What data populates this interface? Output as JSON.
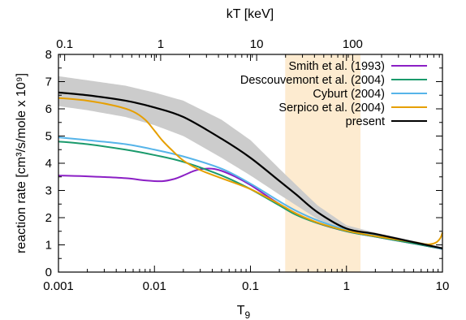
{
  "chart_data": {
    "type": "line",
    "xlabel": "T",
    "xlabel_sub": "9",
    "ylabel": "reaction rate [cm³/s/mole x 10⁹]",
    "x2label": "kT [keV]",
    "xscale": "log",
    "xlim": [
      0.001,
      10
    ],
    "ylim": [
      0,
      8
    ],
    "x_ticks": [
      {
        "value": 0.001,
        "label": "0.001"
      },
      {
        "value": 0.01,
        "label": "0.01"
      },
      {
        "value": 0.1,
        "label": "0.1"
      },
      {
        "value": 1,
        "label": "1"
      },
      {
        "value": 10,
        "label": "10"
      }
    ],
    "y_ticks": [
      {
        "value": 0,
        "label": "0"
      },
      {
        "value": 1,
        "label": "1"
      },
      {
        "value": 2,
        "label": "2"
      },
      {
        "value": 3,
        "label": "3"
      },
      {
        "value": 4,
        "label": "4"
      },
      {
        "value": 5,
        "label": "5"
      },
      {
        "value": 6,
        "label": "6"
      },
      {
        "value": 7,
        "label": "7"
      },
      {
        "value": 8,
        "label": "8"
      }
    ],
    "x2_ticks": [
      {
        "value": 0.1,
        "label": "0.1"
      },
      {
        "value": 1,
        "label": "1"
      },
      {
        "value": 10,
        "label": "10"
      },
      {
        "value": 100,
        "label": "100"
      }
    ],
    "x2_conversion_keV_per_T9": 86.17,
    "highlight_band": {
      "x": [
        0.23,
        1.4
      ],
      "color": "#fdebd0"
    },
    "uncertainty_band": {
      "x": [
        0.001,
        0.002,
        0.005,
        0.01,
        0.02,
        0.05,
        0.1,
        0.2,
        0.3,
        0.5,
        1,
        2,
        5,
        10
      ],
      "lower": [
        6.1,
        5.95,
        5.7,
        5.4,
        5.0,
        4.2,
        3.55,
        2.85,
        2.45,
        1.95,
        1.5,
        1.3,
        1.05,
        0.82
      ],
      "upper": [
        7.2,
        7.05,
        6.85,
        6.6,
        6.3,
        5.6,
        4.85,
        3.8,
        3.2,
        2.45,
        1.72,
        1.45,
        1.15,
        0.92
      ],
      "color": "#cccccc"
    },
    "series": [
      {
        "name": "Smith et al. (1993)",
        "color": "#8b1fc5",
        "x": [
          0.001,
          0.002,
          0.005,
          0.008,
          0.012,
          0.016,
          0.02,
          0.025,
          0.03,
          0.04,
          0.05,
          0.07,
          0.1,
          0.2,
          0.3,
          0.5,
          1,
          2,
          5,
          10
        ],
        "y": [
          3.55,
          3.52,
          3.45,
          3.37,
          3.34,
          3.42,
          3.55,
          3.7,
          3.78,
          3.8,
          3.72,
          3.5,
          3.2,
          2.5,
          2.15,
          1.8,
          1.5,
          1.3,
          1.05,
          0.85
        ]
      },
      {
        "name": "Descouvemont et al. (2004)",
        "color": "#1a9a6c",
        "x": [
          0.001,
          0.002,
          0.005,
          0.01,
          0.02,
          0.05,
          0.1,
          0.2,
          0.3,
          0.5,
          1,
          2,
          5,
          10
        ],
        "y": [
          4.8,
          4.7,
          4.5,
          4.3,
          4.05,
          3.55,
          3.05,
          2.45,
          2.1,
          1.8,
          1.5,
          1.3,
          1.05,
          0.85
        ]
      },
      {
        "name": "Cyburt (2004)",
        "color": "#56b4e9",
        "x": [
          0.001,
          0.002,
          0.005,
          0.01,
          0.02,
          0.05,
          0.1,
          0.2,
          0.3,
          0.5,
          1,
          2,
          5,
          10
        ],
        "y": [
          4.95,
          4.85,
          4.7,
          4.5,
          4.25,
          3.8,
          3.25,
          2.6,
          2.25,
          1.9,
          1.55,
          1.35,
          1.1,
          0.85
        ]
      },
      {
        "name": "Serpico et al. (2004)",
        "color": "#e69f00",
        "x": [
          0.001,
          0.002,
          0.004,
          0.006,
          0.008,
          0.01,
          0.012,
          0.015,
          0.02,
          0.03,
          0.05,
          0.1,
          0.2,
          0.3,
          0.5,
          1,
          2,
          5,
          7,
          8.5,
          9.5,
          10
        ],
        "y": [
          6.4,
          6.3,
          6.1,
          5.9,
          5.6,
          5.2,
          4.85,
          4.5,
          4.1,
          3.75,
          3.45,
          3.05,
          2.5,
          2.15,
          1.82,
          1.52,
          1.32,
          1.1,
          1.02,
          1.08,
          1.25,
          1.45
        ]
      },
      {
        "name": "present",
        "color": "#000000",
        "x": [
          0.001,
          0.002,
          0.005,
          0.01,
          0.02,
          0.05,
          0.1,
          0.2,
          0.3,
          0.5,
          1,
          2,
          5,
          10
        ],
        "y": [
          6.6,
          6.5,
          6.3,
          6.05,
          5.7,
          4.9,
          4.2,
          3.35,
          2.85,
          2.2,
          1.6,
          1.4,
          1.1,
          0.87
        ]
      }
    ],
    "legend": {
      "position": "top-right"
    },
    "grid": false
  }
}
